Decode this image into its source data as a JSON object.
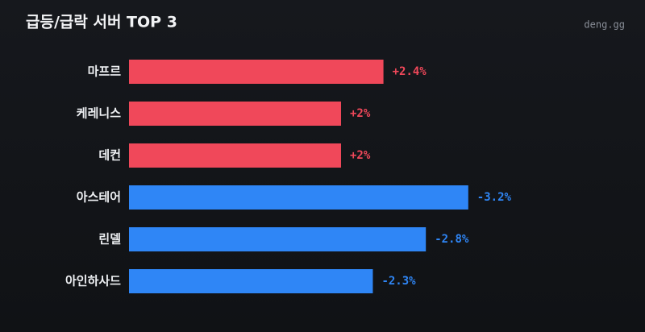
{
  "chart_data": {
    "type": "bar",
    "orientation": "horizontal",
    "title": "급등/급락 서버 TOP 3",
    "source": "deng.gg",
    "categories": [
      "마프르",
      "케레니스",
      "데컨",
      "아스테어",
      "린델",
      "아인하사드"
    ],
    "values": [
      2.4,
      2,
      2,
      -3.2,
      -2.8,
      -2.3
    ],
    "value_labels": [
      "+2.4%",
      "+2%",
      "+2%",
      "-3.2%",
      "-2.8%",
      "-2.3%"
    ],
    "positive_color": "#f0485a",
    "negative_color": "#2f86f6"
  }
}
